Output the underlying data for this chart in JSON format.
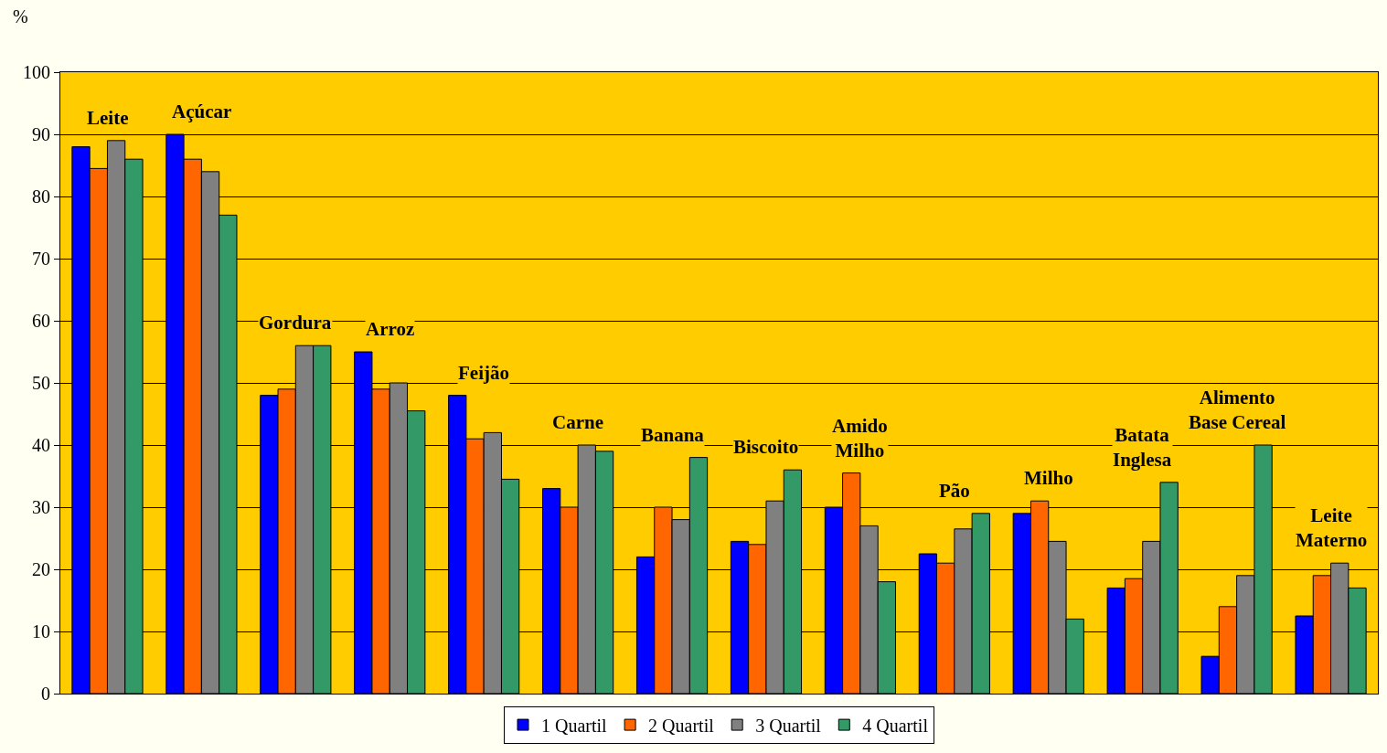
{
  "chart_data": {
    "type": "bar",
    "ylabel": "%",
    "categories": [
      "Leite",
      "Açúcar",
      "Gordura",
      "Arroz",
      "Feijão",
      "Carne",
      "Banana",
      "Biscoito",
      "Amido\nMilho",
      "Pão",
      "Milho",
      "Batata\nInglesa",
      "Alimento\nBase Cereal",
      "Leite\nMaterno"
    ],
    "series": [
      {
        "name": "1 Quartil",
        "color": "#0000ff",
        "values": [
          88,
          90,
          48,
          55,
          48,
          33,
          22,
          24.5,
          30,
          22.5,
          29,
          17,
          6,
          12.5
        ]
      },
      {
        "name": "2 Quartil",
        "color": "#ff6600",
        "values": [
          84.5,
          86,
          49,
          49,
          41,
          30,
          30,
          24,
          35.5,
          21,
          31,
          18.5,
          14,
          19
        ]
      },
      {
        "name": "3 Quartil",
        "color": "#808080",
        "values": [
          89,
          84,
          56,
          50,
          42,
          40,
          28,
          31,
          27,
          26.5,
          24.5,
          24.5,
          19,
          21
        ]
      },
      {
        "name": "4 Quartil",
        "color": "#339966",
        "values": [
          86,
          77,
          56,
          45.5,
          34.5,
          39,
          38,
          36,
          18,
          29,
          12,
          34,
          40,
          17
        ]
      }
    ],
    "ylim": [
      0,
      100
    ],
    "yticks": [
      0,
      10,
      20,
      30,
      40,
      50,
      60,
      70,
      80,
      90,
      100
    ],
    "grid": "y",
    "legend": "bottom"
  }
}
